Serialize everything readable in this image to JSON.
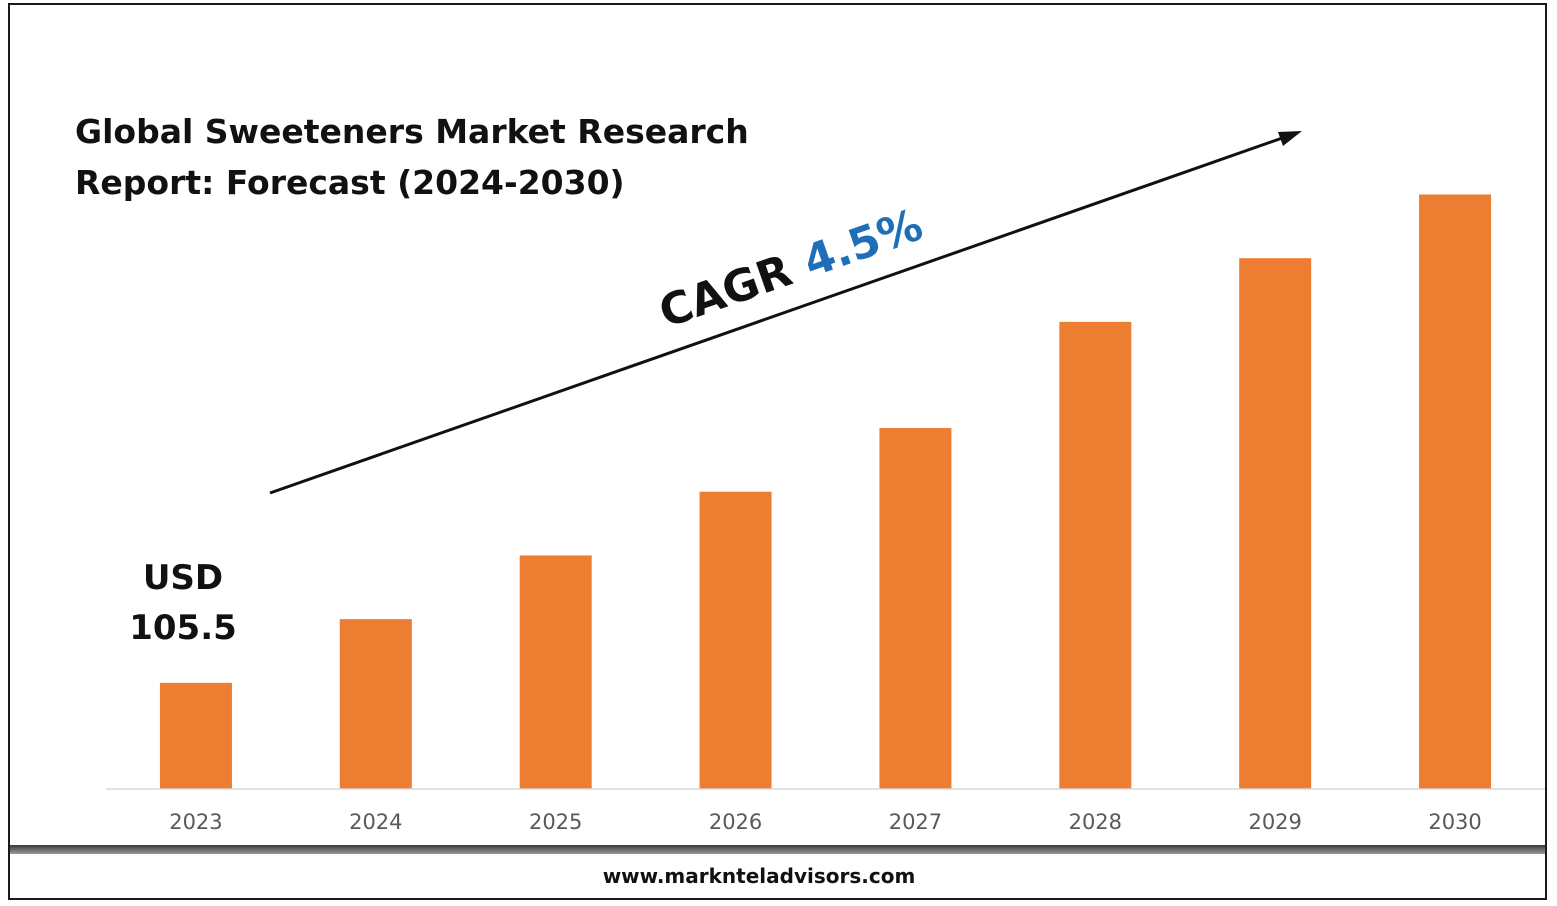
{
  "chart_data": {
    "type": "bar",
    "title_lines": [
      "Global Sweeteners Market Research",
      "Report: Forecast (2024-2030)"
    ],
    "categories": [
      "2023",
      "2024",
      "2025",
      "2026",
      "2027",
      "2028",
      "2029",
      "2030"
    ],
    "values": [
      1.0,
      1.6,
      2.2,
      2.8,
      3.4,
      4.4,
      5.0,
      5.6
    ],
    "ylim": [
      0,
      6.0
    ],
    "grid": false,
    "legend": "none",
    "bar_color": "#ED7D31",
    "annotations": {
      "first_value_lines": [
        "USD",
        "105.5"
      ],
      "cagr_label": "CAGR",
      "cagr_value": "4.5%",
      "cagr_value_color": "#1F6FB8"
    }
  },
  "footer": {
    "url": "www.marknteladvisors.com"
  }
}
